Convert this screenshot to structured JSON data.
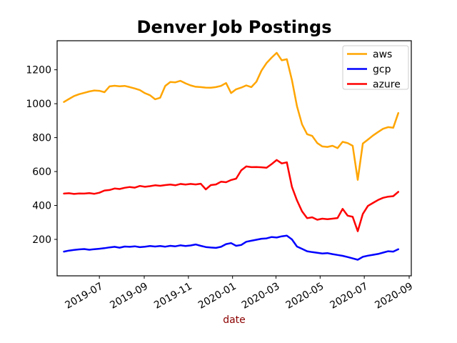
{
  "chart_data": {
    "type": "line",
    "title": "Denver Job Postings",
    "xlabel": "date",
    "xlabel_color": "#8B0000",
    "ylabel": "",
    "grid": false,
    "legend_position": "upper right",
    "legend_border_color": "#cccccc",
    "axis_color": "#000000",
    "background_color": "#ffffff",
    "y_ticks": [
      200,
      400,
      600,
      800,
      1000,
      1200
    ],
    "ylim": [
      -15,
      1370
    ],
    "x_ticks": [
      {
        "label": "2019-07",
        "date": "2019-07-01"
      },
      {
        "label": "2019-09",
        "date": "2019-09-01"
      },
      {
        "label": "2019-11",
        "date": "2019-11-01"
      },
      {
        "label": "2020-01",
        "date": "2020-01-01"
      },
      {
        "label": "2020-03",
        "date": "2020-03-01"
      },
      {
        "label": "2020-05",
        "date": "2020-05-01"
      },
      {
        "label": "2020-07",
        "date": "2020-07-01"
      },
      {
        "label": "2020-09",
        "date": "2020-09-01"
      }
    ],
    "x": [
      "2019-05-13",
      "2019-05-20",
      "2019-05-27",
      "2019-06-03",
      "2019-06-10",
      "2019-06-17",
      "2019-06-24",
      "2019-07-01",
      "2019-07-08",
      "2019-07-15",
      "2019-07-22",
      "2019-07-29",
      "2019-08-05",
      "2019-08-12",
      "2019-08-19",
      "2019-08-26",
      "2019-09-02",
      "2019-09-09",
      "2019-09-16",
      "2019-09-23",
      "2019-09-30",
      "2019-10-07",
      "2019-10-14",
      "2019-10-21",
      "2019-10-28",
      "2019-11-04",
      "2019-11-11",
      "2019-11-18",
      "2019-11-25",
      "2019-12-02",
      "2019-12-09",
      "2019-12-16",
      "2019-12-23",
      "2019-12-30",
      "2020-01-06",
      "2020-01-13",
      "2020-01-20",
      "2020-01-27",
      "2020-02-03",
      "2020-02-10",
      "2020-02-17",
      "2020-02-24",
      "2020-03-02",
      "2020-03-09",
      "2020-03-16",
      "2020-03-23",
      "2020-03-30",
      "2020-04-06",
      "2020-04-13",
      "2020-04-20",
      "2020-04-27",
      "2020-05-04",
      "2020-05-11",
      "2020-05-18",
      "2020-05-25",
      "2020-06-01",
      "2020-06-08",
      "2020-06-15",
      "2020-06-22",
      "2020-06-29",
      "2020-07-06",
      "2020-07-13",
      "2020-07-20",
      "2020-07-27",
      "2020-08-03",
      "2020-08-10",
      "2020-08-17"
    ],
    "series": [
      {
        "name": "aws",
        "color": "#FFA500",
        "values": [
          1010,
          1028,
          1045,
          1056,
          1064,
          1072,
          1078,
          1076,
          1068,
          1102,
          1106,
          1103,
          1105,
          1098,
          1090,
          1080,
          1062,
          1050,
          1026,
          1035,
          1105,
          1128,
          1126,
          1135,
          1120,
          1108,
          1100,
          1098,
          1095,
          1094,
          1098,
          1105,
          1122,
          1063,
          1085,
          1095,
          1108,
          1098,
          1130,
          1195,
          1240,
          1272,
          1300,
          1256,
          1262,
          1140,
          985,
          878,
          820,
          810,
          768,
          748,
          745,
          752,
          738,
          775,
          768,
          752,
          551,
          765,
          788,
          812,
          833,
          852,
          862,
          858,
          945
        ]
      },
      {
        "name": "gcp",
        "color": "#0000FF",
        "values": [
          128,
          134,
          138,
          141,
          143,
          139,
          142,
          145,
          148,
          153,
          156,
          151,
          158,
          156,
          159,
          154,
          157,
          161,
          158,
          161,
          157,
          162,
          159,
          165,
          161,
          164,
          170,
          162,
          155,
          152,
          150,
          156,
          172,
          178,
          162,
          167,
          186,
          192,
          198,
          204,
          206,
          214,
          211,
          218,
          222,
          200,
          158,
          144,
          130,
          125,
          121,
          117,
          119,
          113,
          108,
          103,
          96,
          88,
          80,
          97,
          104,
          109,
          114,
          122,
          130,
          128,
          142
        ]
      },
      {
        "name": "azure",
        "color": "#FF0000",
        "values": [
          470,
          472,
          468,
          471,
          470,
          473,
          469,
          475,
          488,
          491,
          500,
          497,
          504,
          509,
          505,
          515,
          510,
          514,
          519,
          516,
          520,
          523,
          519,
          527,
          523,
          527,
          524,
          528,
          495,
          520,
          524,
          540,
          537,
          550,
          558,
          607,
          630,
          626,
          627,
          625,
          622,
          644,
          668,
          648,
          654,
          510,
          430,
          365,
          325,
          330,
          316,
          322,
          319,
          322,
          326,
          380,
          340,
          333,
          248,
          350,
          397,
          415,
          432,
          445,
          452,
          455,
          480
        ]
      }
    ]
  }
}
